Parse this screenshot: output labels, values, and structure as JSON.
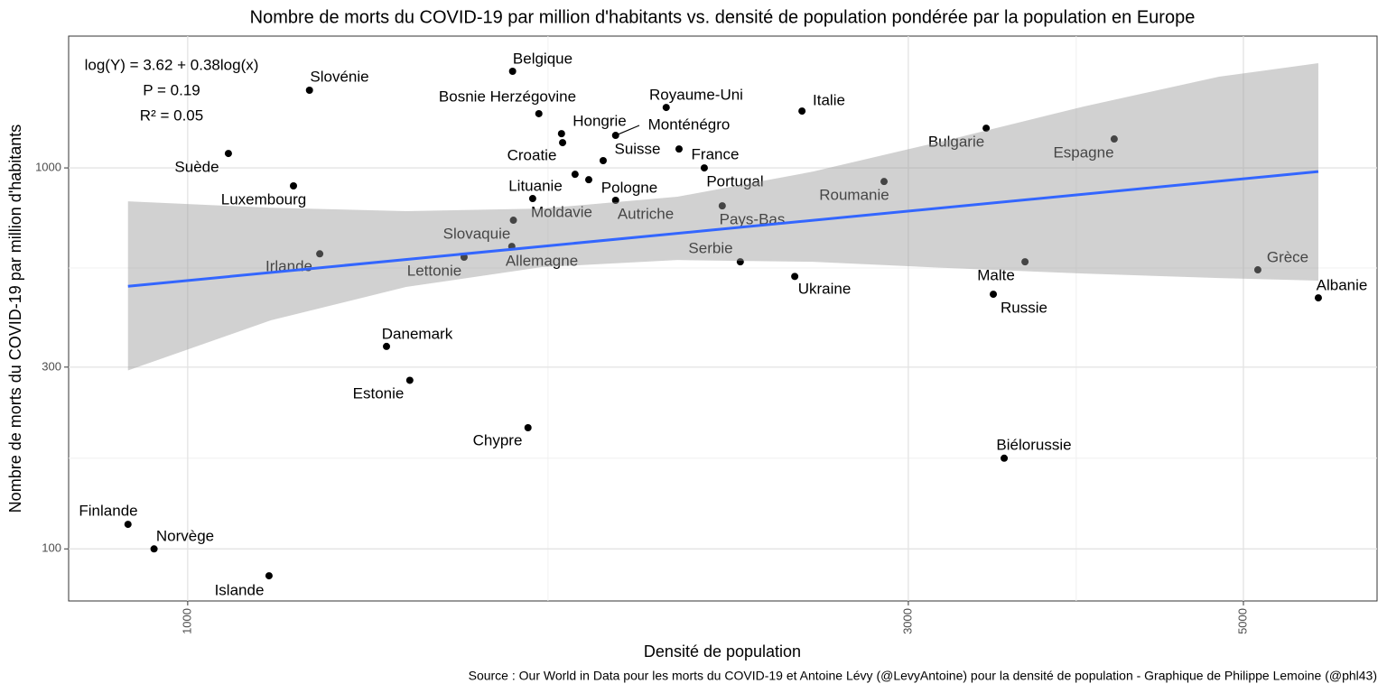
{
  "chart_data": {
    "type": "scatter",
    "title": "Nombre de morts du COVID-19 par million d'habitants vs. densité de population pondérée par la population en Europe",
    "x_label": "Densité de population",
    "y_label": "Nombre de morts du COVID-19 par million d'habitants",
    "caption": "Source : Our World in Data pour les morts du COVID-19 et Antoine Lévy (@LevyAntoine) pour la densité de population - Graphique de Philippe Lemoine (@phl43)",
    "annotations": [
      "log(Y) = 3.62 + 0.38log(x)",
      "P = 0.19",
      "R² = 0.05"
    ],
    "log_x": true,
    "log_y": true,
    "grid": true,
    "xlim": [
      834,
      6130
    ],
    "ylim": [
      73,
      2218
    ],
    "xticks": [
      1000,
      3000,
      5000
    ],
    "yticks": [
      100,
      300,
      1000
    ],
    "xminor": [
      1732,
      3875
    ],
    "yminor": [
      173,
      546
    ],
    "series": [
      {
        "color": "#000000",
        "labels": [
          "Finlande",
          "Norvège",
          "Islande",
          "Suède",
          "Luxembourg",
          "Slovénie",
          "Irlande",
          "Danemark",
          "Estonie",
          "Lettonie",
          "Chypre",
          "Belgique",
          "Bosnie Herzégovine",
          "Hongrie",
          "Croatie",
          "Monténégro",
          "Suisse",
          "Lituanie",
          "Pologne",
          "Moldavie",
          "Slovaquie",
          "Allemagne",
          "Autriche",
          "Royaume-Uni",
          "France",
          "Portugal",
          "Pays-Bas",
          "Serbie",
          "Italie",
          "Ukraine",
          "Roumanie",
          "Bulgarie",
          "Espagne",
          "Malte",
          "Russie",
          "Biélorussie",
          "Grèce",
          "Albanie"
        ],
        "x": [
          913,
          950,
          1132,
          1064,
          1175,
          1204,
          1223,
          1354,
          1403,
          1524,
          1680,
          1641,
          1708,
          1768,
          1771,
          1920,
          1884,
          1805,
          1843,
          1692,
          1643,
          1639,
          1920,
          2074,
          2115,
          2198,
          2259,
          2322,
          2551,
          2523,
          2891,
          3378,
          4106,
          3584,
          3415,
          3472,
          5111,
          5605
        ],
        "values": [
          116,
          100,
          85,
          1091,
          897,
          1599,
          595,
          340,
          277,
          583,
          208,
          1793,
          1388,
          1230,
          1165,
          1217,
          1045,
          962,
          931,
          831,
          729,
          622,
          822,
          1441,
          1121,
          1000,
          795,
          567,
          1410,
          519,
          921,
          1271,
          1191,
          567,
          466,
          173,
          540,
          456
        ]
      }
    ],
    "fit": {
      "color": "#3366ff",
      "x": [
        913,
        5605
      ],
      "values": [
        489,
        978
      ]
    },
    "band": {
      "color": "#999999",
      "x": [
        913,
        1135,
        1395,
        1716,
        2110,
        2594,
        3187,
        3918,
        4817,
        5605
      ],
      "upper": [
        817,
        786,
        770,
        782,
        840,
        978,
        1184,
        1449,
        1735,
        1883
      ],
      "lower": [
        294,
        398,
        487,
        549,
        573,
        567,
        546,
        528,
        514,
        506
      ]
    }
  }
}
